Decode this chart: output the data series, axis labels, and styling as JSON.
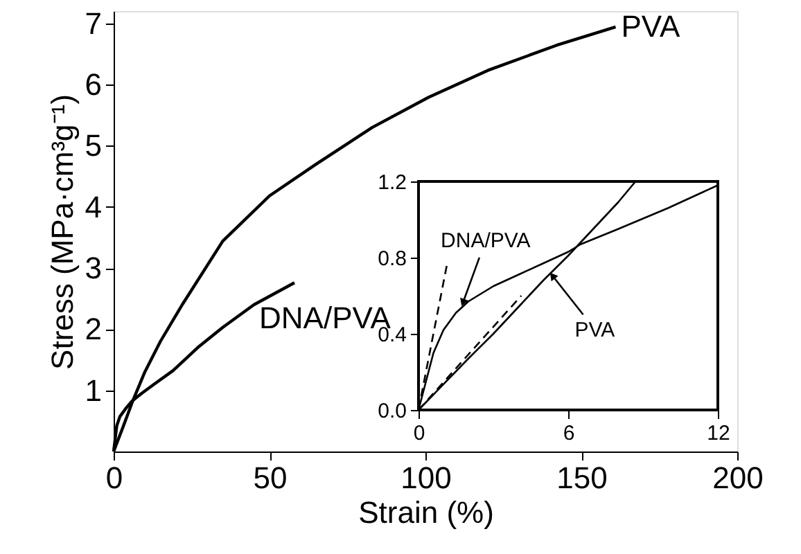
{
  "chart_data": [
    {
      "type": "line",
      "xlabel": "Strain (%)",
      "ylabel": "Stress (MPa·cm³g⁻¹)",
      "xlim": [
        0,
        200
      ],
      "ylim": [
        0,
        7.2
      ],
      "xticks": [
        0,
        50,
        100,
        150,
        200
      ],
      "yticks": [
        1,
        2,
        3,
        4,
        5,
        6,
        7
      ],
      "grid": false,
      "series": [
        {
          "name": "PVA",
          "color": "#000000",
          "x": [
            0,
            3,
            6,
            10,
            15,
            22,
            35,
            50,
            65,
            83,
            101,
            120,
            142,
            161
          ],
          "values": [
            0,
            0.4,
            0.81,
            1.3,
            1.8,
            2.4,
            3.44,
            4.18,
            4.7,
            5.3,
            5.79,
            6.23,
            6.64,
            6.94
          ]
        },
        {
          "name": "DNA/PVA",
          "color": "#000000",
          "x": [
            0,
            1,
            2,
            4,
            6,
            9,
            13,
            19,
            27,
            35,
            45,
            58
          ],
          "values": [
            0,
            0.42,
            0.57,
            0.71,
            0.83,
            0.95,
            1.1,
            1.32,
            1.7,
            2.03,
            2.4,
            2.76
          ]
        }
      ]
    },
    {
      "type": "line",
      "xlim": [
        0,
        12
      ],
      "ylim": [
        0,
        1.2
      ],
      "xticks": [
        0,
        6,
        12
      ],
      "yticks": [
        {
          "value": 0,
          "label": "0.0"
        },
        0.4,
        0.8,
        1.2
      ],
      "grid": false,
      "annotations": [
        {
          "text": "DNA/PVA",
          "x": 1.8,
          "y": 0.57
        },
        {
          "text": "PVA",
          "x": 5.4,
          "y": 0.7
        }
      ],
      "series": [
        {
          "color": "#000000",
          "x": [
            0,
            0.3,
            0.6,
            1,
            1.5,
            2,
            3,
            4,
            5,
            6,
            6.5,
            8,
            10,
            12
          ],
          "values": [
            0,
            0.15,
            0.3,
            0.42,
            0.51,
            0.57,
            0.65,
            0.71,
            0.77,
            0.83,
            0.87,
            0.95,
            1.06,
            1.18
          ]
        },
        {
          "color": "#000000",
          "x": [
            0,
            1,
            2,
            3,
            4,
            5,
            6,
            6.5,
            7,
            8,
            8.7
          ],
          "values": [
            0,
            0.135,
            0.27,
            0.4,
            0.54,
            0.68,
            0.81,
            0.88,
            0.95,
            1.09,
            1.2
          ]
        },
        {
          "color": "#000000",
          "line_style": "dashed",
          "x": [
            0,
            1.15
          ],
          "values": [
            0,
            0.77
          ]
        },
        {
          "color": "#000000",
          "line_style": "dashed",
          "x": [
            0,
            4.12
          ],
          "values": [
            0,
            0.6
          ]
        }
      ]
    }
  ]
}
